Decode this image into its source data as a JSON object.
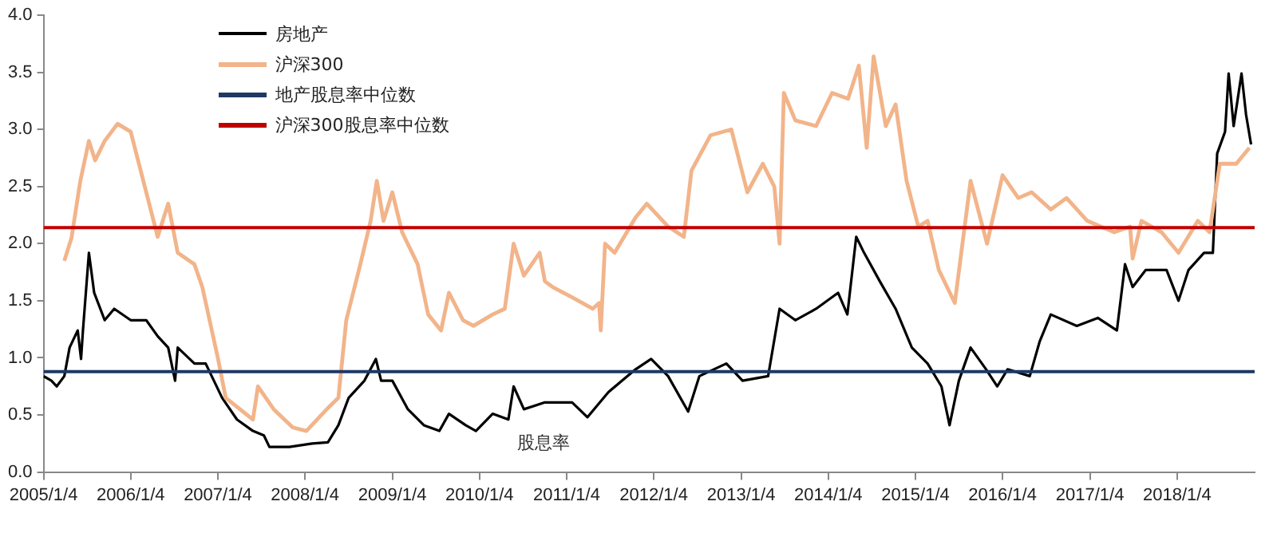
{
  "chart_data": {
    "type": "line",
    "xlim": [
      "2005-01-04",
      "2018-11-25"
    ],
    "xticks": [
      {
        "value": "2005-01-04",
        "label": "2005/1/4"
      },
      {
        "value": "2006-01-04",
        "label": "2006/1/4"
      },
      {
        "value": "2007-01-04",
        "label": "2007/1/4"
      },
      {
        "value": "2008-01-04",
        "label": "2008/1/4"
      },
      {
        "value": "2009-01-04",
        "label": "2009/1/4"
      },
      {
        "value": "2010-01-04",
        "label": "2010/1/4"
      },
      {
        "value": "2011-01-04",
        "label": "2011/1/4"
      },
      {
        "value": "2012-01-04",
        "label": "2012/1/4"
      },
      {
        "value": "2013-01-04",
        "label": "2013/1/4"
      },
      {
        "value": "2014-01-04",
        "label": "2014/1/4"
      },
      {
        "value": "2015-01-04",
        "label": "2015/1/4"
      },
      {
        "value": "2016-01-04",
        "label": "2016/1/4"
      },
      {
        "value": "2017-01-04",
        "label": "2017/1/4"
      },
      {
        "value": "2018-01-04",
        "label": "2018/1/4"
      }
    ],
    "ylim": [
      0,
      4
    ],
    "yticks": [
      {
        "value": 0,
        "label": "0.0"
      },
      {
        "value": 0.5,
        "label": "0.5"
      },
      {
        "value": 1,
        "label": "1.0"
      },
      {
        "value": 1.5,
        "label": "1.5"
      },
      {
        "value": 2,
        "label": "2.0"
      },
      {
        "value": 2.5,
        "label": "2.5"
      },
      {
        "value": 3,
        "label": "3.0"
      },
      {
        "value": 3.5,
        "label": "3.5"
      },
      {
        "value": 4,
        "label": "4.0"
      }
    ],
    "grid": false,
    "legend": "top left",
    "marker": "none",
    "line_style": "solid",
    "annotations": [
      "股息率"
    ],
    "series": [
      {
        "name": "房地产",
        "color": "#000000",
        "x": [
          "2005-01-04",
          "2005-02-06",
          "2005-02-28",
          "2005-04-01",
          "2005-04-23",
          "2005-05-27",
          "2005-06-10",
          "2005-06-18",
          "2005-07-13",
          "2005-08-04",
          "2005-09-17",
          "2005-10-27",
          "2006-01-04",
          "2006-03-10",
          "2006-04-27",
          "2006-06-10",
          "2006-07-09",
          "2006-07-20",
          "2006-09-28",
          "2006-11-14",
          "2007-01-22",
          "2007-03-25",
          "2007-05-31",
          "2007-07-16",
          "2007-08-08",
          "2007-10-31",
          "2008-02-03",
          "2008-04-09",
          "2008-05-23",
          "2008-07-05",
          "2008-09-09",
          "2008-10-27",
          "2008-11-18",
          "2009-01-04",
          "2009-03-10",
          "2009-05-16",
          "2009-07-20",
          "2009-08-29",
          "2009-11-07",
          "2009-12-20",
          "2010-02-28",
          "2010-05-05",
          "2010-05-27",
          "2010-07-09",
          "2010-10-05",
          "2011-01-27",
          "2011-04-01",
          "2011-06-28",
          "2011-10-20",
          "2011-12-24",
          "2012-03-04",
          "2012-05-27",
          "2012-07-13",
          "2012-11-03",
          "2013-01-10",
          "2013-04-27",
          "2013-06-14",
          "2013-08-19",
          "2013-11-14",
          "2014-02-14",
          "2014-03-25",
          "2014-05-01",
          "2014-06-03",
          "2014-08-08",
          "2014-10-13",
          "2014-12-20",
          "2015-02-24",
          "2015-04-23",
          "2015-05-27",
          "2015-07-05",
          "2015-08-23",
          "2015-10-27",
          "2015-12-13",
          "2016-01-25",
          "2016-04-27",
          "2016-06-07",
          "2016-07-24",
          "2016-11-10",
          "2017-02-06",
          "2017-04-27",
          "2017-05-31",
          "2017-07-02",
          "2017-08-26",
          "2017-11-21",
          "2018-01-10",
          "2018-02-21",
          "2018-04-27",
          "2018-06-03",
          "2018-06-21",
          "2018-07-24",
          "2018-08-08",
          "2018-08-29",
          "2018-10-01",
          "2018-10-20",
          "2018-11-10"
        ],
        "values": [
          0.84,
          0.8,
          0.75,
          0.84,
          1.09,
          1.24,
          0.99,
          1.24,
          1.92,
          1.57,
          1.33,
          1.43,
          1.33,
          1.33,
          1.19,
          1.09,
          0.8,
          1.09,
          0.95,
          0.95,
          0.65,
          0.46,
          0.36,
          0.32,
          0.22,
          0.22,
          0.25,
          0.26,
          0.41,
          0.65,
          0.8,
          0.99,
          0.8,
          0.8,
          0.55,
          0.41,
          0.36,
          0.51,
          0.41,
          0.36,
          0.51,
          0.46,
          0.75,
          0.55,
          0.61,
          0.61,
          0.48,
          0.7,
          0.9,
          0.99,
          0.84,
          0.53,
          0.84,
          0.95,
          0.8,
          0.84,
          1.43,
          1.33,
          1.43,
          1.57,
          1.38,
          2.06,
          1.92,
          1.67,
          1.43,
          1.09,
          0.95,
          0.75,
          0.41,
          0.8,
          1.09,
          0.9,
          0.75,
          0.9,
          0.84,
          1.14,
          1.38,
          1.28,
          1.35,
          1.24,
          1.82,
          1.62,
          1.77,
          1.77,
          1.5,
          1.77,
          1.92,
          1.92,
          2.79,
          2.98,
          3.49,
          3.03,
          3.49,
          3.13,
          2.87
        ]
      },
      {
        "name": "沪深300",
        "color": "#f2b48a",
        "x": [
          "2005-04-01",
          "2005-05-01",
          "2005-06-07",
          "2005-07-13",
          "2005-08-08",
          "2005-09-17",
          "2005-11-10",
          "2006-01-04",
          "2006-04-27",
          "2006-06-10",
          "2006-07-20",
          "2006-09-28",
          "2006-10-31",
          "2007-01-04",
          "2007-02-06",
          "2007-05-31",
          "2007-06-21",
          "2007-08-26",
          "2007-11-14",
          "2008-01-10",
          "2008-04-09",
          "2008-05-23",
          "2008-06-25",
          "2008-08-23",
          "2008-10-05",
          "2008-10-31",
          "2008-11-28",
          "2009-01-04",
          "2009-02-14",
          "2009-04-20",
          "2009-06-03",
          "2009-07-27",
          "2009-08-29",
          "2009-10-27",
          "2009-12-10",
          "2010-02-28",
          "2010-04-20",
          "2010-05-27",
          "2010-07-09",
          "2010-09-13",
          "2010-10-05",
          "2010-11-07",
          "2011-01-27",
          "2011-04-23",
          "2011-05-20",
          "2011-05-27",
          "2011-06-14",
          "2011-07-24",
          "2011-10-20",
          "2011-12-06",
          "2012-03-04",
          "2012-05-09",
          "2012-06-10",
          "2012-08-29",
          "2012-11-24",
          "2013-01-30",
          "2013-04-05",
          "2013-05-23",
          "2013-06-14",
          "2013-07-02",
          "2013-08-19",
          "2013-11-14",
          "2014-01-20",
          "2014-03-28",
          "2014-05-12",
          "2014-06-14",
          "2014-07-13",
          "2014-09-02",
          "2014-10-13",
          "2014-11-28",
          "2015-01-16",
          "2015-02-24",
          "2015-04-12",
          "2015-06-18",
          "2015-08-23",
          "2015-10-31",
          "2016-01-04",
          "2016-03-10",
          "2016-05-05",
          "2016-07-24",
          "2016-09-28",
          "2016-12-24",
          "2017-04-16",
          "2017-06-21",
          "2017-07-02",
          "2017-08-08",
          "2017-10-31",
          "2018-01-10",
          "2018-04-01",
          "2018-05-20",
          "2018-07-02",
          "2018-09-09",
          "2018-11-03"
        ],
        "values": [
          1.85,
          2.05,
          2.55,
          2.9,
          2.73,
          2.9,
          3.05,
          2.98,
          2.06,
          2.35,
          1.92,
          1.82,
          1.62,
          1.0,
          0.65,
          0.46,
          0.75,
          0.55,
          0.39,
          0.36,
          0.56,
          0.65,
          1.33,
          1.82,
          2.2,
          2.55,
          2.2,
          2.45,
          2.1,
          1.82,
          1.38,
          1.24,
          1.57,
          1.33,
          1.28,
          1.38,
          1.43,
          2.0,
          1.72,
          1.92,
          1.67,
          1.62,
          1.53,
          1.43,
          1.48,
          1.24,
          2.0,
          1.92,
          2.23,
          2.35,
          2.15,
          2.06,
          2.64,
          2.95,
          3.0,
          2.45,
          2.7,
          2.5,
          2.0,
          3.32,
          3.08,
          3.03,
          3.32,
          3.27,
          3.56,
          2.84,
          3.64,
          3.03,
          3.22,
          2.55,
          2.15,
          2.2,
          1.77,
          1.48,
          2.55,
          2.0,
          2.6,
          2.4,
          2.45,
          2.3,
          2.4,
          2.2,
          2.1,
          2.15,
          1.87,
          2.2,
          2.1,
          1.92,
          2.2,
          2.1,
          2.7,
          2.7,
          2.84
        ]
      }
    ],
    "ref_lines": [
      {
        "axis": "y",
        "value": 0.88,
        "label": "地产股息率中位数",
        "color": "#1f3864"
      },
      {
        "axis": "y",
        "value": 2.14,
        "label": "沪深300股息率中位数",
        "color": "#c00000"
      }
    ]
  }
}
